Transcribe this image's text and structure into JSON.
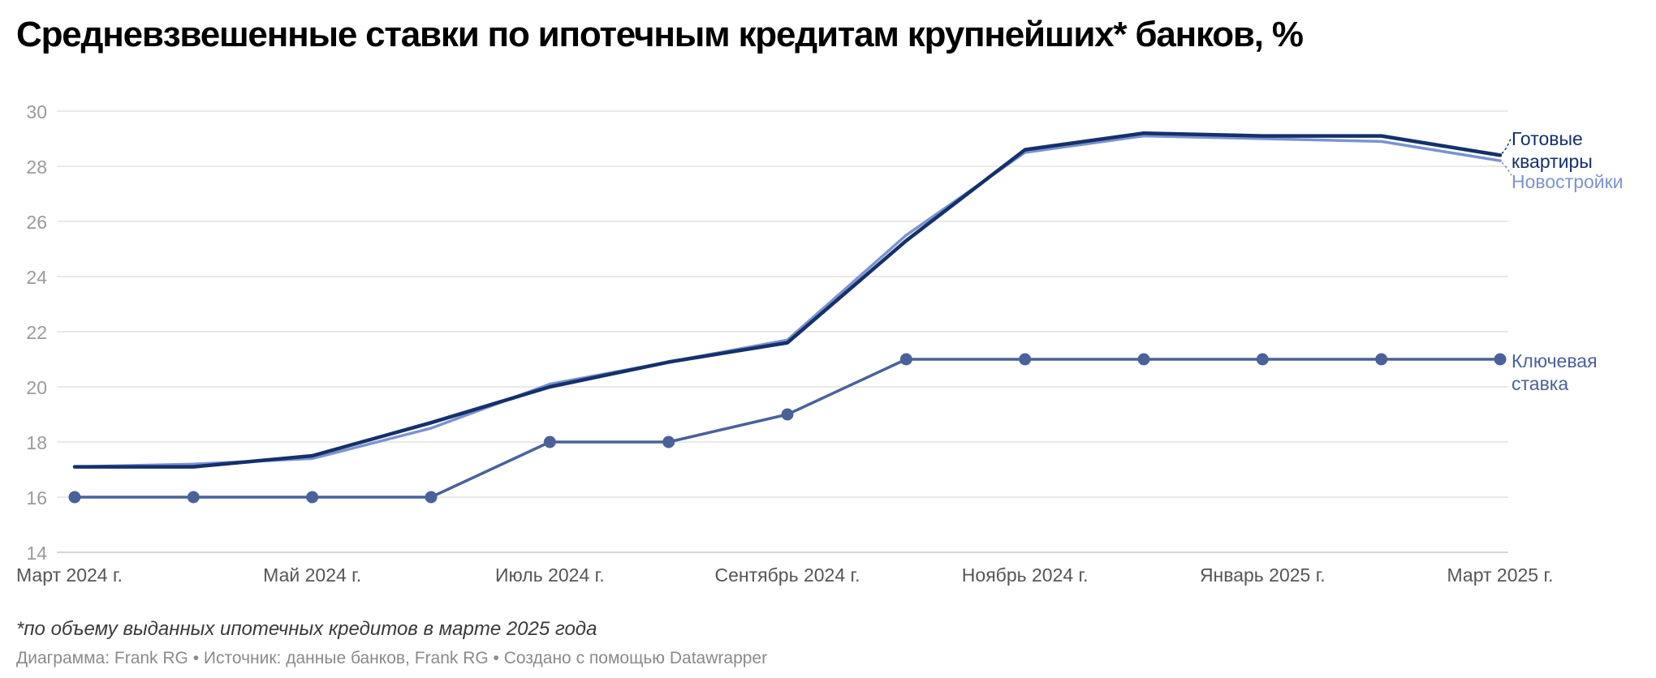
{
  "chart_data": {
    "type": "line",
    "title": "Средневзвешенные ставки по ипотечным кредитам крупнейших* банков, %",
    "x": [
      "2024-03",
      "2024-04",
      "2024-05",
      "2024-06",
      "2024-07",
      "2024-08",
      "2024-09",
      "2024-10",
      "2024-11",
      "2024-12",
      "2025-01",
      "2025-02",
      "2025-03"
    ],
    "x_tick_labels": [
      "Март 2024 г.",
      "Май 2024 г.",
      "Июль 2024 г.",
      "Сентябрь 2024 г.",
      "Ноябрь 2024 г.",
      "Январь 2025 г.",
      "Март 2025 г."
    ],
    "ylim": [
      14,
      30
    ],
    "y_ticks": [
      14,
      16,
      18,
      20,
      22,
      24,
      26,
      28,
      30
    ],
    "grid": true,
    "series": [
      {
        "name": "Готовые квартиры",
        "name_lines": [
          "Готовые",
          "квартиры"
        ],
        "color": "#15306b",
        "values": [
          17.1,
          17.1,
          17.5,
          18.7,
          20.0,
          20.9,
          21.6,
          25.3,
          28.6,
          29.2,
          29.1,
          29.1,
          28.4
        ],
        "markers": false
      },
      {
        "name": "Новостройки",
        "name_lines": [
          "Новостройки"
        ],
        "color": "#7b93cf",
        "values": [
          17.1,
          17.2,
          17.4,
          18.5,
          20.1,
          20.9,
          21.7,
          25.5,
          28.5,
          29.1,
          29.0,
          28.9,
          28.2
        ],
        "markers": false
      },
      {
        "name": "Ключевая ставка",
        "name_lines": [
          "Ключевая",
          "ставка"
        ],
        "color": "#4a619a",
        "values": [
          16,
          16,
          16,
          16,
          18,
          18,
          19,
          21,
          21,
          21,
          21,
          21,
          21
        ],
        "markers": true
      }
    ]
  },
  "footnote": "*по объему выданных ипотечных кредитов в марте 2025 года",
  "credits": "Диаграмма: Frank RG • Источник: данные банков, Frank RG • Создано с помощью Datawrapper"
}
